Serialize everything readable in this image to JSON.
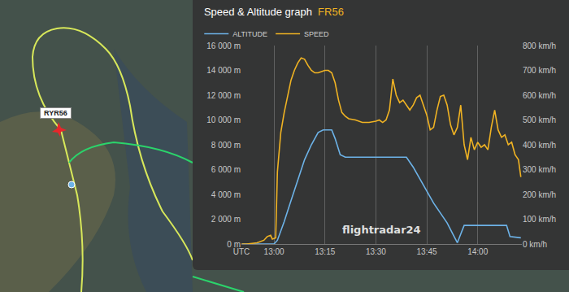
{
  "chart_data": {
    "type": "line",
    "title": "Speed & Altitude graph",
    "subtitle": "FR56",
    "annotations": [
      {
        "text": "flightradar24"
      }
    ],
    "xlim": [
      770.4,
      853
    ],
    "xticks": [
      {
        "value": 770.4,
        "label": "UTC"
      },
      {
        "value": 780,
        "label": "13:00"
      },
      {
        "value": 795,
        "label": "13:15"
      },
      {
        "value": 810,
        "label": "13:30"
      },
      {
        "value": 825,
        "label": "13:45"
      },
      {
        "value": 840,
        "label": "14:00"
      }
    ],
    "ylim": [
      0,
      16000
    ],
    "yticks": [
      {
        "value": 0,
        "label": "0 m"
      },
      {
        "value": 2000,
        "label": "2 000 m"
      },
      {
        "value": 4000,
        "label": "4 000 m"
      },
      {
        "value": 6000,
        "label": "6 000 m"
      },
      {
        "value": 8000,
        "label": "8 000 m"
      },
      {
        "value": 10000,
        "label": "10 000 m"
      },
      {
        "value": 12000,
        "label": "12 000 m"
      },
      {
        "value": 14000,
        "label": "14 000 m"
      },
      {
        "value": 16000,
        "label": "16 000 m"
      }
    ],
    "y2lim": [
      0,
      800
    ],
    "y2ticks": [
      {
        "value": 0,
        "label": "0 km/h"
      },
      {
        "value": 100,
        "label": "100 km/h"
      },
      {
        "value": 200,
        "label": "200 km/h"
      },
      {
        "value": 300,
        "label": "300 km/h"
      },
      {
        "value": 400,
        "label": "400 km/h"
      },
      {
        "value": 500,
        "label": "500 km/h"
      },
      {
        "value": 600,
        "label": "600 km/h"
      },
      {
        "value": 700,
        "label": "700 km/h"
      },
      {
        "value": 800,
        "label": "800 km/h"
      }
    ],
    "grid": true,
    "legend": "top-left",
    "series": [
      {
        "name": "ALTITUDE",
        "color": "#6db3e8",
        "x": [
          770.5,
          780,
          781,
          783,
          785,
          787,
          789,
          791,
          793,
          794.5,
          797,
          798,
          799.5,
          801,
          810,
          819,
          821,
          823,
          825,
          827,
          829,
          831,
          832.5,
          834,
          835,
          836,
          848.5,
          849.5,
          852.7
        ],
        "values": [
          0,
          0,
          300,
          1800,
          3500,
          5200,
          6800,
          8000,
          9000,
          9200,
          9200,
          8500,
          7200,
          7000,
          7000,
          7000,
          6200,
          5200,
          4200,
          3300,
          2500,
          1700,
          900,
          100,
          800,
          1500,
          1500,
          600,
          500
        ]
      },
      {
        "name": "SPEED",
        "color": "#f0b323",
        "axis": "y2",
        "x": [
          770.5,
          772,
          775,
          777,
          778,
          779,
          779.5,
          780.5,
          781,
          782,
          783,
          784,
          785,
          786,
          787,
          788,
          789,
          790,
          791,
          792,
          793,
          794,
          795,
          796,
          797,
          798,
          799,
          800,
          801,
          802,
          804,
          806,
          808,
          810,
          811,
          812,
          813,
          814,
          815,
          816,
          817,
          818,
          819,
          820,
          821,
          822,
          823,
          824,
          825,
          826,
          827,
          828,
          829,
          830,
          831,
          832,
          833,
          834,
          835,
          836,
          837,
          838,
          839,
          840,
          841,
          842,
          843,
          844,
          845,
          846,
          847,
          848,
          849,
          850,
          851,
          852,
          852.7
        ],
        "values": [
          0,
          0,
          5,
          15,
          30,
          35,
          20,
          25,
          290,
          450,
          530,
          600,
          660,
          700,
          730,
          750,
          745,
          720,
          700,
          690,
          690,
          695,
          700,
          700,
          690,
          650,
          580,
          530,
          515,
          505,
          500,
          490,
          490,
          495,
          500,
          490,
          500,
          540,
          665,
          600,
          570,
          580,
          560,
          540,
          560,
          590,
          600,
          560,
          520,
          460,
          470,
          540,
          595,
          600,
          560,
          480,
          440,
          470,
          560,
          400,
          340,
          430,
          380,
          410,
          390,
          400,
          380,
          470,
          540,
          460,
          430,
          440,
          400,
          410,
          360,
          340,
          270
        ]
      }
    ]
  },
  "map": {
    "label": "RYR56"
  }
}
